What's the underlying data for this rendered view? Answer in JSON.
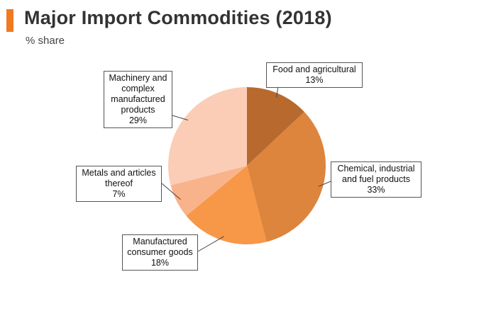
{
  "accent_color": "#f07a22",
  "chart_data": {
    "type": "pie",
    "title": "Major Import Commodities (2018)",
    "subtitle": "% share",
    "slices": [
      {
        "name": "Food and agricultural",
        "value": 13,
        "value_label": "13%",
        "color": "#b86a2e"
      },
      {
        "name": "Chemical, industrial and fuel products",
        "value": 33,
        "value_label": "33%",
        "color": "#dd843d"
      },
      {
        "name": "Manufactured consumer goods",
        "value": 18,
        "value_label": "18%",
        "color": "#f79748"
      },
      {
        "name": "Metals and articles thereof",
        "value": 7,
        "value_label": "7%",
        "color": "#f9b38b"
      },
      {
        "name": "Machinery and complex manufactured products",
        "value": 29,
        "value_label": "29%",
        "color": "#fbcdb6"
      }
    ],
    "labels": [
      {
        "lines": [
          "Food and agricultural"
        ]
      },
      {
        "lines": [
          "Chemical, industrial",
          "and fuel products"
        ]
      },
      {
        "lines": [
          "Manufactured",
          "consumer goods"
        ]
      },
      {
        "lines": [
          "Metals and articles",
          "thereof"
        ]
      },
      {
        "lines": [
          "Machinery and",
          "complex",
          "manufactured",
          "products"
        ]
      }
    ]
  }
}
